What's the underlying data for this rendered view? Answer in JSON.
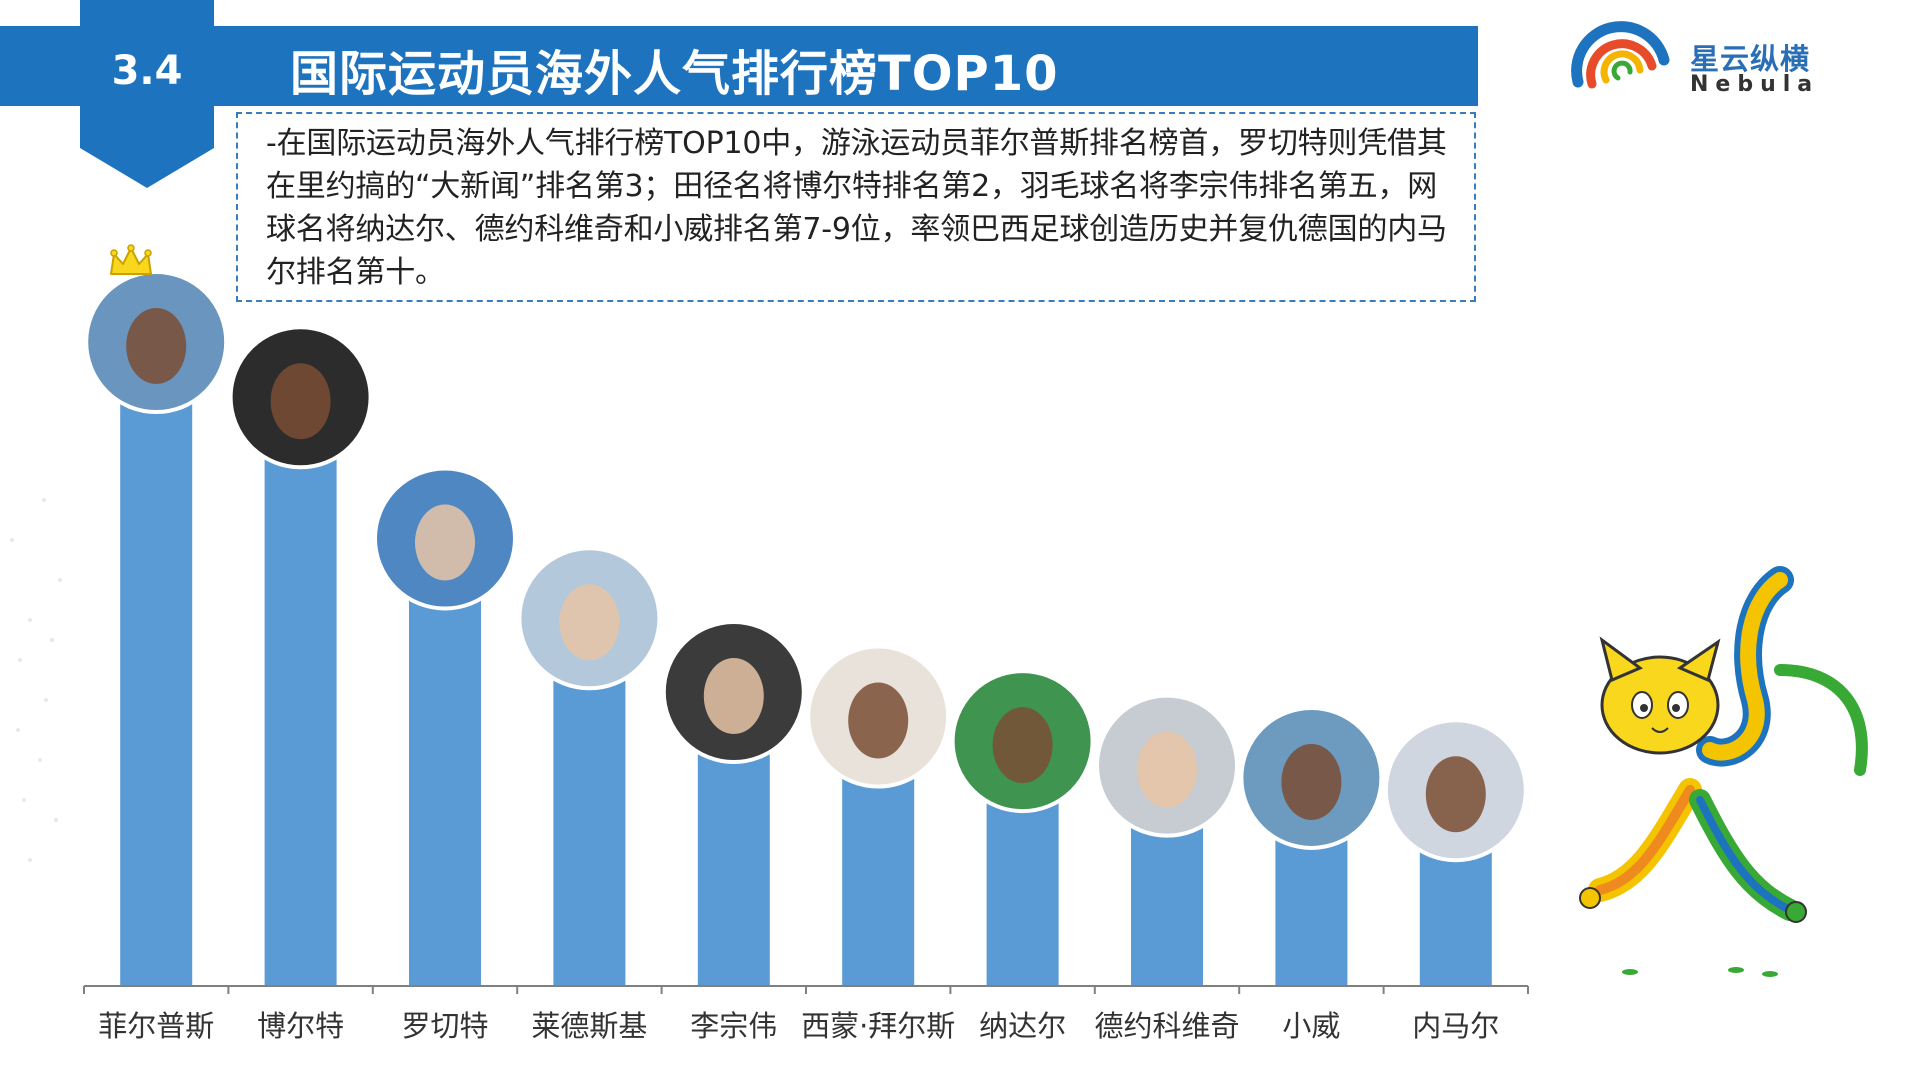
{
  "header": {
    "section_number": "3.4",
    "title": "国际运动员海外人气排行榜TOP10"
  },
  "logo": {
    "name_cn": "星云纵横",
    "name_en": "Nebula"
  },
  "summary": {
    "text": "-在国际运动员海外人气排行榜TOP10中，游泳运动员菲尔普斯排名榜首，罗切特则凭借其在里约搞的“大新闻”排名第3；田径名将博尔特排名第2，羽毛球名将李宗伟排名第五，网球名将纳达尔、德约科维奇和小威排名第7-9位，率领巴西足球创造历史并复仇德国的内马尔排名第十。"
  },
  "colors": {
    "brand_blue": "#1e73be",
    "bar_blue": "#5b9bd5",
    "box_border": "#3a7cc0"
  },
  "icons": [
    "crown-icon",
    "athlete-avatar",
    "mascot-illustration",
    "nebula-logo"
  ],
  "chart_data": {
    "type": "bar",
    "categories": [
      "菲尔普斯",
      "博尔特",
      "罗切特",
      "莱德斯基",
      "李宗伟",
      "西蒙·拜尔斯",
      "纳达尔",
      "德约科维奇",
      "小威",
      "内马尔"
    ],
    "values": [
      100,
      91,
      68,
      55,
      43,
      39,
      35,
      31,
      29,
      27
    ],
    "ylim": [
      0,
      100
    ],
    "grid": false,
    "legend": "none"
  }
}
